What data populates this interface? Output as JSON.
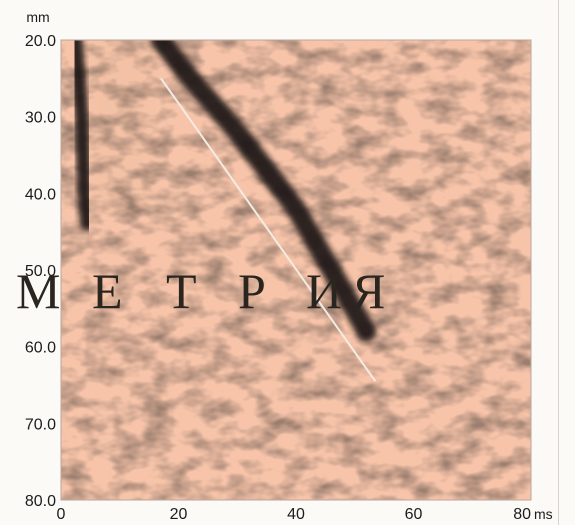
{
  "chart_data": {
    "type": "heatmap",
    "title": "",
    "xlabel": "",
    "ylabel": "",
    "x_unit": "ms",
    "y_unit": "mm",
    "xlim": [
      0,
      80
    ],
    "ylim": [
      20.0,
      80.0
    ],
    "y_inverted": true,
    "x_ticks": [
      "0",
      "20",
      "40",
      "60",
      "80"
    ],
    "y_ticks": [
      "20.0",
      "30.0",
      "40.0",
      "50.0",
      "60.0",
      "70.0",
      "80.0"
    ],
    "colormap": {
      "low": "#1a1512",
      "high": "#f7c4a9"
    },
    "dark_bands": [
      {
        "name": "band-left",
        "points": [
          [
            2.5,
            20.0
          ],
          [
            3.5,
            30.0
          ],
          [
            4.0,
            40.0
          ],
          [
            4.5,
            44.0
          ]
        ]
      },
      {
        "name": "band-diagonal",
        "points": [
          [
            17.0,
            20.0
          ],
          [
            22.0,
            25.0
          ],
          [
            30.0,
            32.0
          ],
          [
            40.0,
            42.0
          ],
          [
            46.0,
            50.0
          ],
          [
            52.0,
            58.0
          ]
        ]
      }
    ],
    "annotation_line": {
      "x": [
        17.0,
        53.5
      ],
      "y": [
        25.0,
        64.5
      ],
      "color": "#f2ece4"
    }
  },
  "watermark": {
    "letters": [
      "М",
      "Е",
      "Т",
      "Р",
      "И",
      "Я"
    ]
  }
}
